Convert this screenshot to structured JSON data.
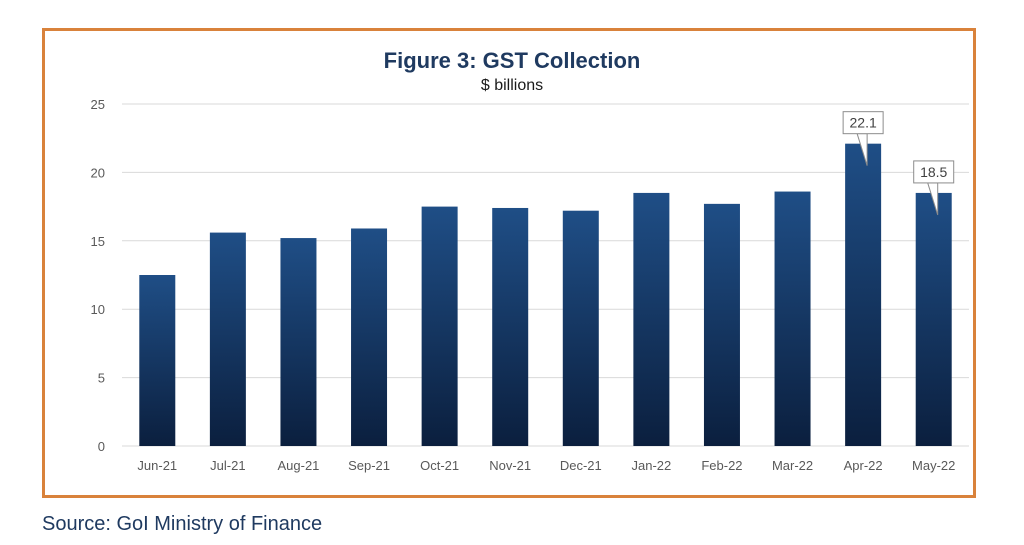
{
  "source_note": "Source: GoI Ministry of Finance",
  "colors": {
    "frame": "#D9823B",
    "bar_top": "#1F4E86",
    "bar_bottom": "#0B1F3E",
    "title": "#1F3A60",
    "grid": "#D9D9D9"
  },
  "chart_data": {
    "type": "bar",
    "title": "Figure 3: GST Collection",
    "subtitle": "$ billions",
    "xlabel": "",
    "ylabel": "",
    "categories": [
      "Jun-21",
      "Jul-21",
      "Aug-21",
      "Sep-21",
      "Oct-21",
      "Nov-21",
      "Dec-21",
      "Jan-22",
      "Feb-22",
      "Mar-22",
      "Apr-22",
      "May-22"
    ],
    "values": [
      12.5,
      15.6,
      15.2,
      15.9,
      17.5,
      17.4,
      17.2,
      18.5,
      17.7,
      18.6,
      22.1,
      18.5
    ],
    "ylim": [
      0,
      25
    ],
    "yticks": [
      0,
      5,
      10,
      15,
      20,
      25
    ],
    "grid": true,
    "data_labels": [
      {
        "category": "Apr-22",
        "text": "22.1"
      },
      {
        "category": "May-22",
        "text": "18.5"
      }
    ]
  }
}
